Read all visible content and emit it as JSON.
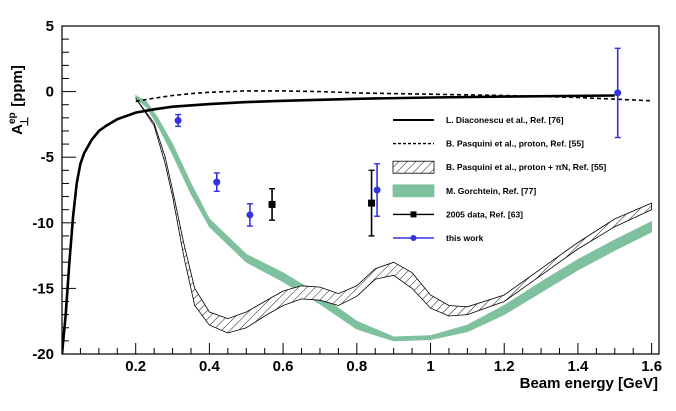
{
  "chart_data": {
    "type": "line",
    "xlabel": "Beam energy [GeV]",
    "ylabel": "A⊥ [ppm]",
    "ylabel_base": "A",
    "ylabel_sup": "ep",
    "ylabel_sub": "⊥",
    "ylabel_unit": "[ppm]",
    "xlim": [
      0.0,
      1.62
    ],
    "ylim": [
      -20,
      5
    ],
    "xticks": [
      {
        "v": 0.2,
        "label": "0.2"
      },
      {
        "v": 0.4,
        "label": "0.4"
      },
      {
        "v": 0.6,
        "label": "0.6"
      },
      {
        "v": 0.8,
        "label": "0.8"
      },
      {
        "v": 1.0,
        "label": "1"
      },
      {
        "v": 1.2,
        "label": "1.2"
      },
      {
        "v": 1.4,
        "label": "1.4"
      },
      {
        "v": 1.6,
        "label": "1.6"
      }
    ],
    "yticks": [
      {
        "v": 5,
        "label": "5"
      },
      {
        "v": 0,
        "label": "0"
      },
      {
        "v": -5,
        "label": "-5"
      },
      {
        "v": -10,
        "label": "-10"
      },
      {
        "v": -15,
        "label": "-15"
      },
      {
        "v": -20,
        "label": "-20"
      }
    ],
    "series": [
      {
        "name": "L. Diaconescu et al., Ref. [76]",
        "style": "solid",
        "color": "#000000",
        "x": [
          0.0,
          0.01,
          0.02,
          0.03,
          0.04,
          0.05,
          0.06,
          0.08,
          0.1,
          0.12,
          0.15,
          0.2,
          0.25,
          0.3,
          0.4,
          0.5,
          0.6,
          0.8,
          1.0,
          1.2,
          1.5
        ],
        "y": [
          -20.0,
          -17.0,
          -13.0,
          -9.5,
          -7.0,
          -5.5,
          -4.7,
          -3.7,
          -3.0,
          -2.6,
          -2.1,
          -1.6,
          -1.35,
          -1.15,
          -0.95,
          -0.8,
          -0.7,
          -0.55,
          -0.45,
          -0.38,
          -0.3
        ]
      },
      {
        "name": "B. Pasquini et al., proton, Ref. [55]",
        "style": "dashed",
        "color": "#000000",
        "x": [
          0.2,
          0.25,
          0.3,
          0.35,
          0.4,
          0.5,
          0.6,
          0.7,
          0.8,
          0.9,
          1.0,
          1.2,
          1.4,
          1.6
        ],
        "y": [
          -0.75,
          -0.5,
          -0.3,
          -0.15,
          -0.05,
          0.05,
          0.05,
          0.0,
          -0.1,
          -0.15,
          -0.2,
          -0.3,
          -0.45,
          -0.7
        ]
      },
      {
        "name": "B. Pasquini et al., proton + πN, Ref. [55]",
        "style": "hatched-band",
        "color": "#000000",
        "x": [
          0.2,
          0.25,
          0.28,
          0.3,
          0.33,
          0.36,
          0.4,
          0.45,
          0.5,
          0.55,
          0.6,
          0.65,
          0.7,
          0.75,
          0.8,
          0.85,
          0.9,
          0.95,
          1.0,
          1.05,
          1.1,
          1.2,
          1.3,
          1.4,
          1.5,
          1.6
        ],
        "upper": [
          -0.5,
          -2.4,
          -5.0,
          -7.5,
          -11.5,
          -15.0,
          -16.8,
          -17.3,
          -16.8,
          -16.0,
          -15.2,
          -14.8,
          -14.9,
          -15.4,
          -14.8,
          -13.5,
          -13.0,
          -13.8,
          -15.5,
          -16.3,
          -16.4,
          -15.5,
          -13.5,
          -11.5,
          -9.7,
          -8.5
        ],
        "lower": [
          -0.5,
          -2.6,
          -5.5,
          -8.0,
          -12.5,
          -16.3,
          -17.8,
          -18.4,
          -18.0,
          -17.1,
          -16.3,
          -15.8,
          -15.9,
          -16.3,
          -15.6,
          -14.3,
          -14.0,
          -15.0,
          -16.5,
          -17.1,
          -17.0,
          -16.0,
          -14.0,
          -12.0,
          -10.3,
          -9.0
        ]
      },
      {
        "name": "M. Gorchtein, Ref. [77]",
        "style": "filled-band",
        "color": "#7fc19e",
        "x": [
          0.2,
          0.23,
          0.26,
          0.3,
          0.35,
          0.4,
          0.5,
          0.6,
          0.7,
          0.8,
          0.9,
          1.0,
          1.1,
          1.2,
          1.3,
          1.4,
          1.5,
          1.6
        ],
        "upper": [
          -0.3,
          -0.8,
          -2.0,
          -4.0,
          -7.0,
          -9.7,
          -12.4,
          -13.8,
          -15.5,
          -17.5,
          -18.7,
          -18.6,
          -17.8,
          -16.3,
          -14.5,
          -12.8,
          -11.3,
          -9.9
        ],
        "lower": [
          -0.5,
          -1.2,
          -2.6,
          -4.8,
          -7.8,
          -10.3,
          -13.0,
          -14.5,
          -16.2,
          -18.1,
          -19.0,
          -18.9,
          -18.3,
          -17.0,
          -15.3,
          -13.6,
          -12.1,
          -10.7
        ]
      },
      {
        "name": "2005 data, Ref. [63]",
        "style": "points-square",
        "color": "#000000",
        "points": [
          {
            "x": 0.57,
            "y": -8.6,
            "err": 1.2
          },
          {
            "x": 0.84,
            "y": -8.5,
            "err": 2.5
          }
        ]
      },
      {
        "name": "this work",
        "style": "points-circle",
        "color": "#3333dd",
        "points": [
          {
            "x": 0.315,
            "y": -2.2,
            "err": 0.45
          },
          {
            "x": 0.42,
            "y": -6.9,
            "err": 0.7
          },
          {
            "x": 0.51,
            "y": -9.4,
            "err": 0.85
          },
          {
            "x": 0.855,
            "y": -7.5,
            "err": 2.0
          },
          {
            "x": 1.508,
            "y": -0.1,
            "err": 3.4
          }
        ]
      }
    ],
    "legend_placement": "right"
  }
}
